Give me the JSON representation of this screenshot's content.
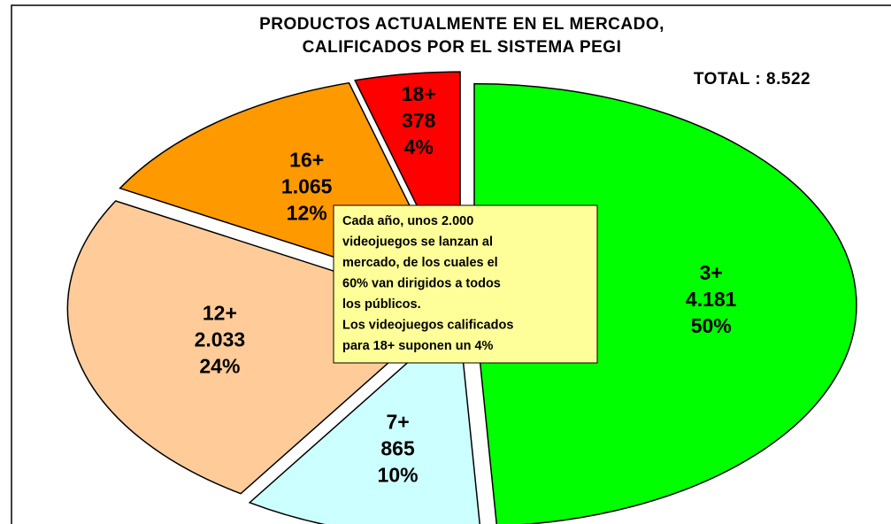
{
  "chart_data": {
    "type": "pie",
    "title": [
      "PRODUCTOS ACTUALMENTE EN EL MERCADO,",
      "CALIFICADOS POR EL SISTEMA PEGI"
    ],
    "total_label": "TOTAL : 8.522",
    "categories": [
      "3+",
      "7+",
      "12+",
      "16+",
      "18+"
    ],
    "values": [
      4181,
      865,
      2033,
      1065,
      378
    ],
    "value_labels": [
      "4.181",
      "865",
      "2.033",
      "1.065",
      "378"
    ],
    "percentages": [
      50,
      10,
      24,
      12,
      4
    ],
    "percentage_labels": [
      "50%",
      "10%",
      "24%",
      "12%",
      "4%"
    ],
    "colors": [
      "#00ff00",
      "#ccffff",
      "#ffcc99",
      "#ff9900",
      "#ff0000"
    ],
    "annotation": [
      "Cada año, unos 2.000",
      "videojuegos se lanzan al",
      "mercado, de los cuales el",
      "60% van dirigidos a todos",
      "los públicos.",
      "Los videojuegos calificados",
      "para 18+ suponen un 4%"
    ]
  }
}
